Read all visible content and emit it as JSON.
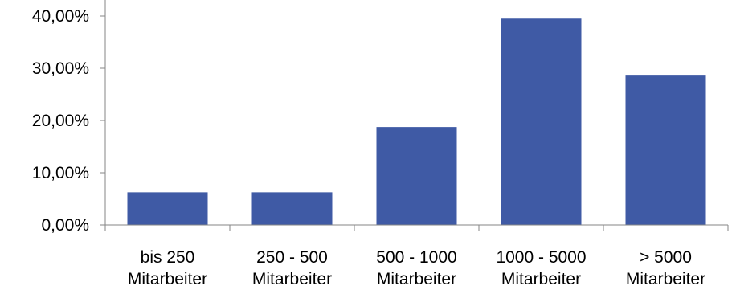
{
  "chart_data": {
    "type": "bar",
    "categories": [
      [
        "bis 250",
        "Mitarbeiter"
      ],
      [
        "250 - 500",
        "Mitarbeiter"
      ],
      [
        "500 - 1000",
        "Mitarbeiter"
      ],
      [
        "1000 - 5000",
        "Mitarbeiter"
      ],
      [
        "> 5000",
        "Mitarbeiter"
      ]
    ],
    "values": [
      6.25,
      6.25,
      18.75,
      39.5,
      28.75
    ],
    "y_ticks": [
      {
        "value": 0,
        "label": "0,00%"
      },
      {
        "value": 10,
        "label": "10,00%"
      },
      {
        "value": 20,
        "label": "20,00%"
      },
      {
        "value": 30,
        "label": "30,00%"
      },
      {
        "value": 40,
        "label": "40,00%"
      }
    ],
    "ylim": [
      0,
      45
    ],
    "grid": false,
    "bar_color": "#3F5AA5",
    "axis_color": "#868686"
  }
}
